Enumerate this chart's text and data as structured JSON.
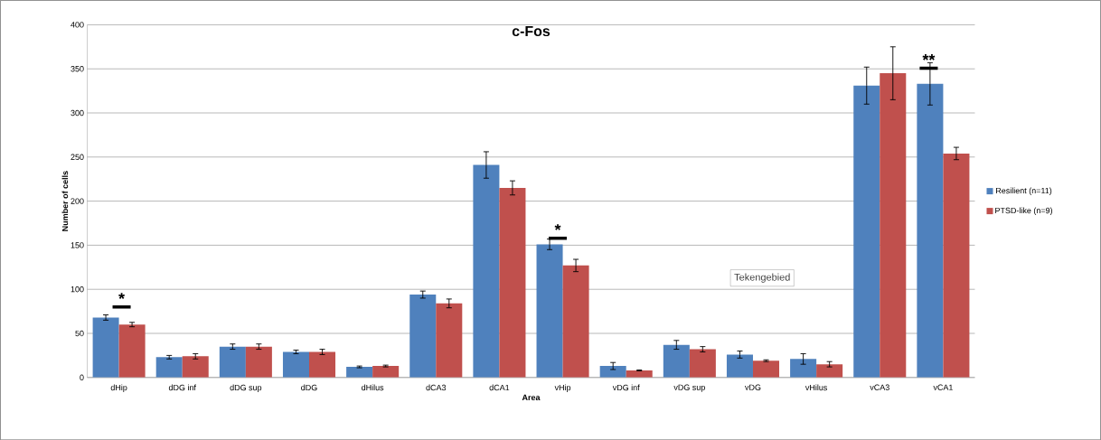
{
  "chart_data": {
    "type": "bar",
    "title": "c-Fos",
    "xlabel": "Area",
    "ylabel": "Number of cells",
    "categories": [
      "dHip",
      "dDG inf",
      "dDG sup",
      "dDG",
      "dHilus",
      "dCA3",
      "dCA1",
      "vHip",
      "vDG inf",
      "vDG sup",
      "vDG",
      "vHilus",
      "vCA3",
      "vCA1"
    ],
    "series": [
      {
        "name": "Resilient (n=11)",
        "color": "#4f81bd",
        "values": [
          68,
          23,
          35,
          29,
          12,
          94,
          241,
          151,
          13,
          37,
          26,
          21,
          331,
          333
        ],
        "errors": [
          3,
          2,
          3,
          2,
          1,
          4,
          15,
          6,
          4,
          5,
          4,
          6,
          21,
          24
        ]
      },
      {
        "name": "PTSD-like (n=9)",
        "color": "#c0504d",
        "values": [
          60,
          24,
          35,
          29,
          13,
          84,
          215,
          127,
          8,
          32,
          19,
          15,
          345,
          254
        ],
        "errors": [
          2.5,
          3,
          3,
          3,
          1,
          5,
          8,
          7,
          0.5,
          3,
          1,
          3,
          30,
          7
        ]
      }
    ],
    "ylim": [
      0,
      400
    ],
    "yticks": [
      0,
      50,
      100,
      150,
      200,
      250,
      300,
      350,
      400
    ],
    "grid": "y",
    "legend": "right",
    "annotations": [
      "*",
      "*",
      "**",
      "Tekengebied"
    ]
  }
}
